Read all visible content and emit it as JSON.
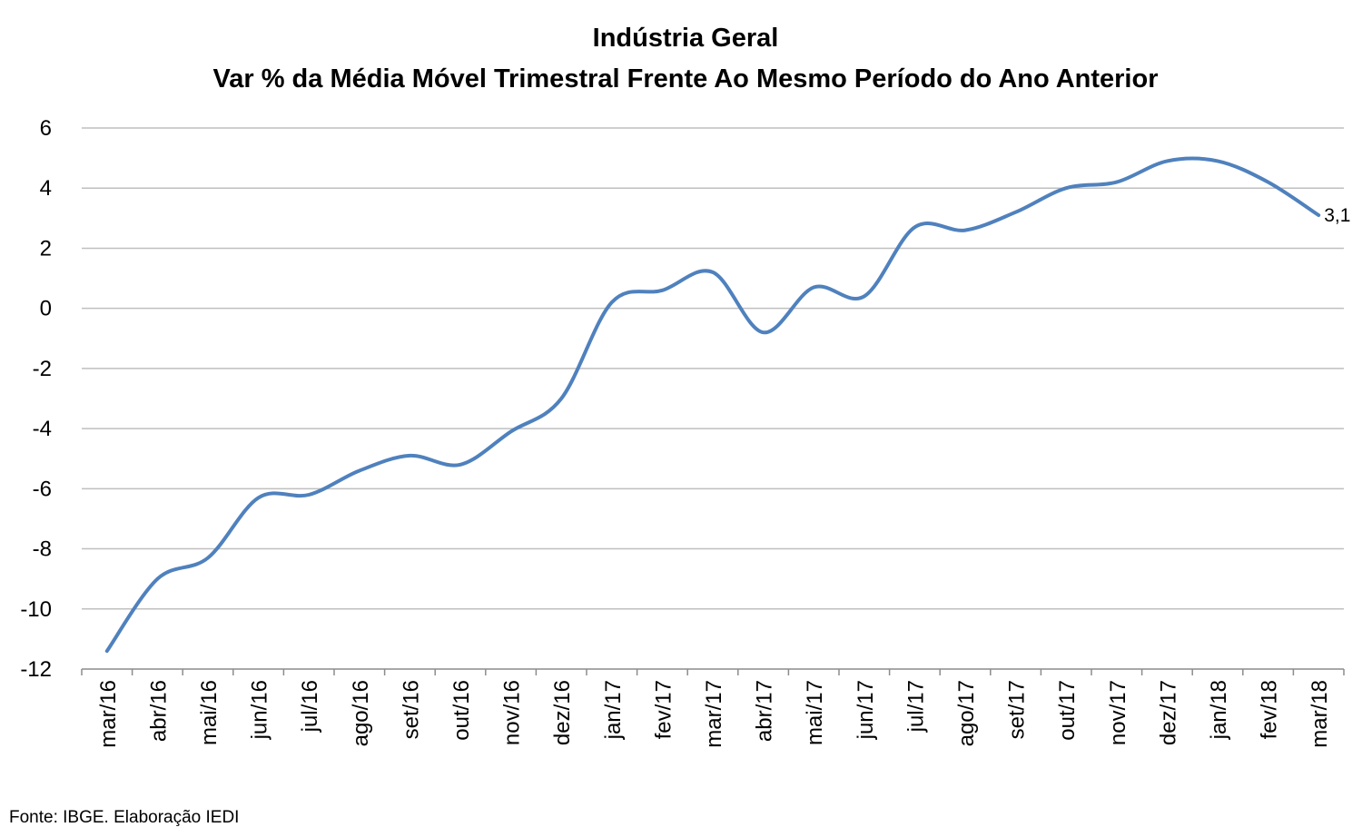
{
  "chart_data": {
    "type": "line",
    "title": "Indústria Geral",
    "subtitle": "Var % da Média Móvel Trimestral Frente Ao Mesmo Período do Ano Anterior",
    "categories": [
      "mar/16",
      "abr/16",
      "mai/16",
      "jun/16",
      "jul/16",
      "ago/16",
      "set/16",
      "out/16",
      "nov/16",
      "dez/16",
      "jan/17",
      "fev/17",
      "mar/17",
      "abr/17",
      "mai/17",
      "jun/17",
      "jul/17",
      "ago/17",
      "set/17",
      "out/17",
      "nov/17",
      "dez/17",
      "jan/18",
      "fev/18",
      "mar/18"
    ],
    "series": [
      {
        "values": [
          -11.4,
          -9.0,
          -8.3,
          -6.3,
          -6.2,
          -5.4,
          -4.9,
          -5.2,
          -4.1,
          -3.0,
          0.2,
          0.6,
          1.2,
          -0.8,
          0.7,
          0.4,
          2.7,
          2.6,
          3.2,
          4.0,
          4.2,
          4.9,
          4.9,
          4.2,
          3.1
        ],
        "color": "#4f81bd"
      }
    ],
    "ylim": [
      -12,
      6
    ],
    "yticks": [
      6,
      4,
      2,
      0,
      -2,
      -4,
      -6,
      -8,
      -10,
      -12
    ],
    "grid": true,
    "data_label": "3,1"
  },
  "source": "Fonte: IBGE. Elaboração IEDI"
}
